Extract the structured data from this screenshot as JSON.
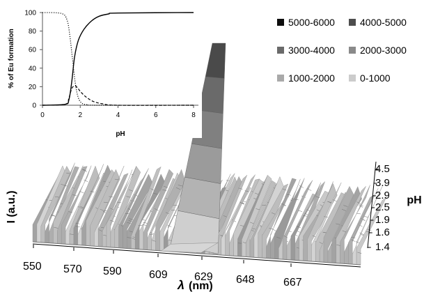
{
  "chart_data": [
    {
      "type": "line",
      "xlabel": "pH",
      "ylabel": "% of Eu formation",
      "xlim": [
        0,
        8
      ],
      "ylim": [
        0,
        100
      ],
      "x_ticks": [
        "0",
        "2",
        "4",
        "6",
        "8"
      ],
      "y_ticks": [
        "0",
        "20",
        "40",
        "60",
        "80",
        "100"
      ],
      "grid": false,
      "series": [
        {
          "style": "dotted",
          "x": [
            0,
            1.0,
            1.3,
            1.45,
            1.6,
            1.75,
            1.9,
            2.1,
            2.4,
            3.0,
            8.0
          ],
          "y": [
            100,
            99,
            92,
            75,
            48,
            22,
            8,
            2,
            0.5,
            0,
            0
          ]
        },
        {
          "style": "solid",
          "x": [
            0,
            1.2,
            1.4,
            1.55,
            1.7,
            1.9,
            2.2,
            2.6,
            3.0,
            3.5,
            4.0,
            8.0
          ],
          "y": [
            0,
            1,
            6,
            25,
            52,
            70,
            82,
            91,
            96,
            98.5,
            99.5,
            100
          ]
        },
        {
          "style": "dashed",
          "x": [
            0,
            1.2,
            1.4,
            1.55,
            1.7,
            1.85,
            2.0,
            2.3,
            2.7,
            3.2,
            4.0,
            8.0
          ],
          "y": [
            0,
            1,
            8,
            18,
            21,
            19,
            15,
            9,
            4,
            1.5,
            0,
            0
          ]
        }
      ]
    },
    {
      "type": "surface",
      "xlabel_symbol": "λ",
      "xlabel_unit": "(nm)",
      "ylabel": "I (a.u.)",
      "zlabel": "pH",
      "x_ticks": [
        "550",
        "570",
        "590",
        "609",
        "629",
        "648",
        "667"
      ],
      "z_ticks": [
        "1.4",
        "1.6",
        "1.9",
        "2.5",
        "2.9",
        "3.9",
        "4.5"
      ],
      "peak_wavelength": 615,
      "legend": [
        "5000-6000",
        "4000-5000",
        "3000-4000",
        "2000-3000",
        "1000-2000",
        "0-1000"
      ],
      "legend_colors": [
        "#0d0d0d",
        "#4d4d4d",
        "#6a6a6a",
        "#8a8a8a",
        "#a9a9a9",
        "#cccccc"
      ]
    }
  ]
}
